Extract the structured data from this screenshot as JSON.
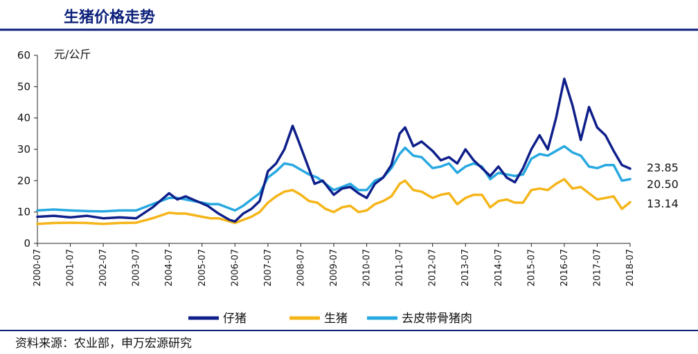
{
  "header": {
    "title": "生猪价格走势",
    "source": "资料来源：农业部，申万宏源研究"
  },
  "chart_data": {
    "type": "line",
    "title": "生猪价格走势",
    "ylabel": "元/公斤",
    "xlabel": "",
    "ylim": [
      0,
      60
    ],
    "yticks": [
      0,
      10,
      20,
      30,
      40,
      50,
      60
    ],
    "xlim": [
      "2000-07",
      "2018-07"
    ],
    "x_tick_labels": [
      "2000-07",
      "2001-07",
      "2002-07",
      "2003-07",
      "2004-07",
      "2005-07",
      "2006-07",
      "2007-07",
      "2008-07",
      "2009-07",
      "2010-07",
      "2011-07",
      "2012-07",
      "2013-07",
      "2014-07",
      "2015-07",
      "2016-07",
      "2017-07",
      "2018-07"
    ],
    "grid": false,
    "legend_position": "bottom",
    "series": [
      {
        "name": "仔猪",
        "color": "#0f1f8a",
        "end_label": "23.85",
        "points": [
          [
            "2000-07",
            8.5
          ],
          [
            "2001-01",
            8.8
          ],
          [
            "2001-07",
            8.3
          ],
          [
            "2002-01",
            8.8
          ],
          [
            "2002-07",
            8.0
          ],
          [
            "2003-01",
            8.3
          ],
          [
            "2003-07",
            8.0
          ],
          [
            "2004-01",
            11.5
          ],
          [
            "2004-05",
            14.5
          ],
          [
            "2004-07",
            16.0
          ],
          [
            "2004-10",
            14.0
          ],
          [
            "2005-01",
            15.0
          ],
          [
            "2005-05",
            13.5
          ],
          [
            "2005-09",
            12.0
          ],
          [
            "2006-01",
            9.5
          ],
          [
            "2006-05",
            7.5
          ],
          [
            "2006-07",
            7.0
          ],
          [
            "2006-10",
            9.5
          ],
          [
            "2007-01",
            11.0
          ],
          [
            "2007-04",
            13.5
          ],
          [
            "2007-07",
            23.0
          ],
          [
            "2007-10",
            25.5
          ],
          [
            "2008-01",
            30.0
          ],
          [
            "2008-04",
            37.5
          ],
          [
            "2008-06",
            33.0
          ],
          [
            "2008-09",
            26.0
          ],
          [
            "2008-12",
            19.0
          ],
          [
            "2009-03",
            20.0
          ],
          [
            "2009-07",
            15.5
          ],
          [
            "2009-10",
            17.5
          ],
          [
            "2010-01",
            18.0
          ],
          [
            "2010-04",
            16.0
          ],
          [
            "2010-07",
            14.5
          ],
          [
            "2010-10",
            19.0
          ],
          [
            "2011-01",
            21.0
          ],
          [
            "2011-04",
            25.0
          ],
          [
            "2011-07",
            35.0
          ],
          [
            "2011-09",
            37.0
          ],
          [
            "2011-12",
            31.0
          ],
          [
            "2012-03",
            32.5
          ],
          [
            "2012-07",
            29.5
          ],
          [
            "2012-10",
            26.5
          ],
          [
            "2013-01",
            27.5
          ],
          [
            "2013-04",
            25.5
          ],
          [
            "2013-07",
            30.0
          ],
          [
            "2013-10",
            26.5
          ],
          [
            "2014-01",
            24.0
          ],
          [
            "2014-04",
            21.5
          ],
          [
            "2014-07",
            24.5
          ],
          [
            "2014-10",
            21.0
          ],
          [
            "2015-01",
            19.5
          ],
          [
            "2015-04",
            24.0
          ],
          [
            "2015-07",
            30.0
          ],
          [
            "2015-10",
            34.5
          ],
          [
            "2016-01",
            30.0
          ],
          [
            "2016-04",
            40.0
          ],
          [
            "2016-07",
            52.5
          ],
          [
            "2016-10",
            44.0
          ],
          [
            "2017-01",
            33.0
          ],
          [
            "2017-04",
            43.5
          ],
          [
            "2017-07",
            37.0
          ],
          [
            "2017-10",
            34.5
          ],
          [
            "2018-01",
            29.5
          ],
          [
            "2018-04",
            25.0
          ],
          [
            "2018-07",
            23.85
          ]
        ]
      },
      {
        "name": "生猪",
        "color": "#f5b519",
        "end_label": "13.14",
        "points": [
          [
            "2000-07",
            6.2
          ],
          [
            "2001-01",
            6.5
          ],
          [
            "2001-07",
            6.6
          ],
          [
            "2002-01",
            6.5
          ],
          [
            "2002-07",
            6.2
          ],
          [
            "2003-01",
            6.5
          ],
          [
            "2003-07",
            6.6
          ],
          [
            "2004-01",
            8.0
          ],
          [
            "2004-07",
            9.8
          ],
          [
            "2004-10",
            9.5
          ],
          [
            "2005-01",
            9.5
          ],
          [
            "2005-07",
            8.5
          ],
          [
            "2005-10",
            8.0
          ],
          [
            "2006-01",
            8.0
          ],
          [
            "2006-07",
            6.5
          ],
          [
            "2006-10",
            7.5
          ],
          [
            "2007-01",
            8.5
          ],
          [
            "2007-04",
            10.0
          ],
          [
            "2007-07",
            13.0
          ],
          [
            "2007-10",
            15.0
          ],
          [
            "2008-01",
            16.5
          ],
          [
            "2008-04",
            17.0
          ],
          [
            "2008-07",
            15.5
          ],
          [
            "2008-10",
            13.5
          ],
          [
            "2009-01",
            13.0
          ],
          [
            "2009-04",
            11.0
          ],
          [
            "2009-07",
            10.0
          ],
          [
            "2009-10",
            11.5
          ],
          [
            "2010-01",
            12.0
          ],
          [
            "2010-04",
            10.0
          ],
          [
            "2010-07",
            10.5
          ],
          [
            "2010-10",
            12.5
          ],
          [
            "2011-01",
            13.5
          ],
          [
            "2011-04",
            15.0
          ],
          [
            "2011-07",
            19.0
          ],
          [
            "2011-09",
            20.0
          ],
          [
            "2011-12",
            17.0
          ],
          [
            "2012-03",
            16.5
          ],
          [
            "2012-07",
            14.5
          ],
          [
            "2012-10",
            15.5
          ],
          [
            "2013-01",
            16.0
          ],
          [
            "2013-04",
            12.5
          ],
          [
            "2013-07",
            14.5
          ],
          [
            "2013-10",
            15.5
          ],
          [
            "2014-01",
            15.5
          ],
          [
            "2014-04",
            11.5
          ],
          [
            "2014-07",
            13.5
          ],
          [
            "2014-10",
            14.0
          ],
          [
            "2015-01",
            13.0
          ],
          [
            "2015-04",
            13.0
          ],
          [
            "2015-07",
            17.0
          ],
          [
            "2015-10",
            17.5
          ],
          [
            "2016-01",
            17.0
          ],
          [
            "2016-04",
            19.0
          ],
          [
            "2016-07",
            20.5
          ],
          [
            "2016-10",
            17.5
          ],
          [
            "2017-01",
            18.0
          ],
          [
            "2017-04",
            16.0
          ],
          [
            "2017-07",
            14.0
          ],
          [
            "2017-10",
            14.5
          ],
          [
            "2018-01",
            15.0
          ],
          [
            "2018-04",
            11.0
          ],
          [
            "2018-07",
            13.14
          ]
        ]
      },
      {
        "name": "去皮带骨猪肉",
        "color": "#27a8e0",
        "end_label": "20.50",
        "points": [
          [
            "2000-07",
            10.5
          ],
          [
            "2001-01",
            10.8
          ],
          [
            "2001-07",
            10.5
          ],
          [
            "2002-01",
            10.3
          ],
          [
            "2002-07",
            10.2
          ],
          [
            "2003-01",
            10.5
          ],
          [
            "2003-07",
            10.5
          ],
          [
            "2004-01",
            12.5
          ],
          [
            "2004-07",
            14.5
          ],
          [
            "2004-10",
            14.5
          ],
          [
            "2005-01",
            14.0
          ],
          [
            "2005-07",
            13.0
          ],
          [
            "2005-10",
            12.5
          ],
          [
            "2006-01",
            12.5
          ],
          [
            "2006-07",
            10.5
          ],
          [
            "2006-10",
            12.0
          ],
          [
            "2007-01",
            14.0
          ],
          [
            "2007-04",
            16.0
          ],
          [
            "2007-07",
            21.0
          ],
          [
            "2007-10",
            23.0
          ],
          [
            "2008-01",
            25.5
          ],
          [
            "2008-04",
            25.0
          ],
          [
            "2008-07",
            23.5
          ],
          [
            "2008-10",
            22.0
          ],
          [
            "2009-01",
            21.0
          ],
          [
            "2009-04",
            19.0
          ],
          [
            "2009-07",
            17.0
          ],
          [
            "2009-10",
            18.0
          ],
          [
            "2010-01",
            19.0
          ],
          [
            "2010-04",
            17.0
          ],
          [
            "2010-07",
            17.0
          ],
          [
            "2010-10",
            20.0
          ],
          [
            "2011-01",
            21.0
          ],
          [
            "2011-04",
            24.0
          ],
          [
            "2011-07",
            28.5
          ],
          [
            "2011-09",
            30.5
          ],
          [
            "2011-12",
            28.0
          ],
          [
            "2012-03",
            27.5
          ],
          [
            "2012-07",
            24.0
          ],
          [
            "2012-10",
            24.5
          ],
          [
            "2013-01",
            25.5
          ],
          [
            "2013-04",
            22.5
          ],
          [
            "2013-07",
            24.5
          ],
          [
            "2013-10",
            25.5
          ],
          [
            "2014-01",
            24.5
          ],
          [
            "2014-04",
            20.5
          ],
          [
            "2014-07",
            22.5
          ],
          [
            "2014-10",
            22.0
          ],
          [
            "2015-01",
            21.5
          ],
          [
            "2015-04",
            22.0
          ],
          [
            "2015-07",
            27.0
          ],
          [
            "2015-10",
            28.5
          ],
          [
            "2016-01",
            28.0
          ],
          [
            "2016-04",
            29.5
          ],
          [
            "2016-07",
            31.0
          ],
          [
            "2016-10",
            29.0
          ],
          [
            "2017-01",
            28.0
          ],
          [
            "2017-04",
            24.5
          ],
          [
            "2017-07",
            24.0
          ],
          [
            "2017-10",
            25.0
          ],
          [
            "2018-01",
            25.0
          ],
          [
            "2018-04",
            20.0
          ],
          [
            "2018-07",
            20.5
          ]
        ]
      }
    ]
  }
}
